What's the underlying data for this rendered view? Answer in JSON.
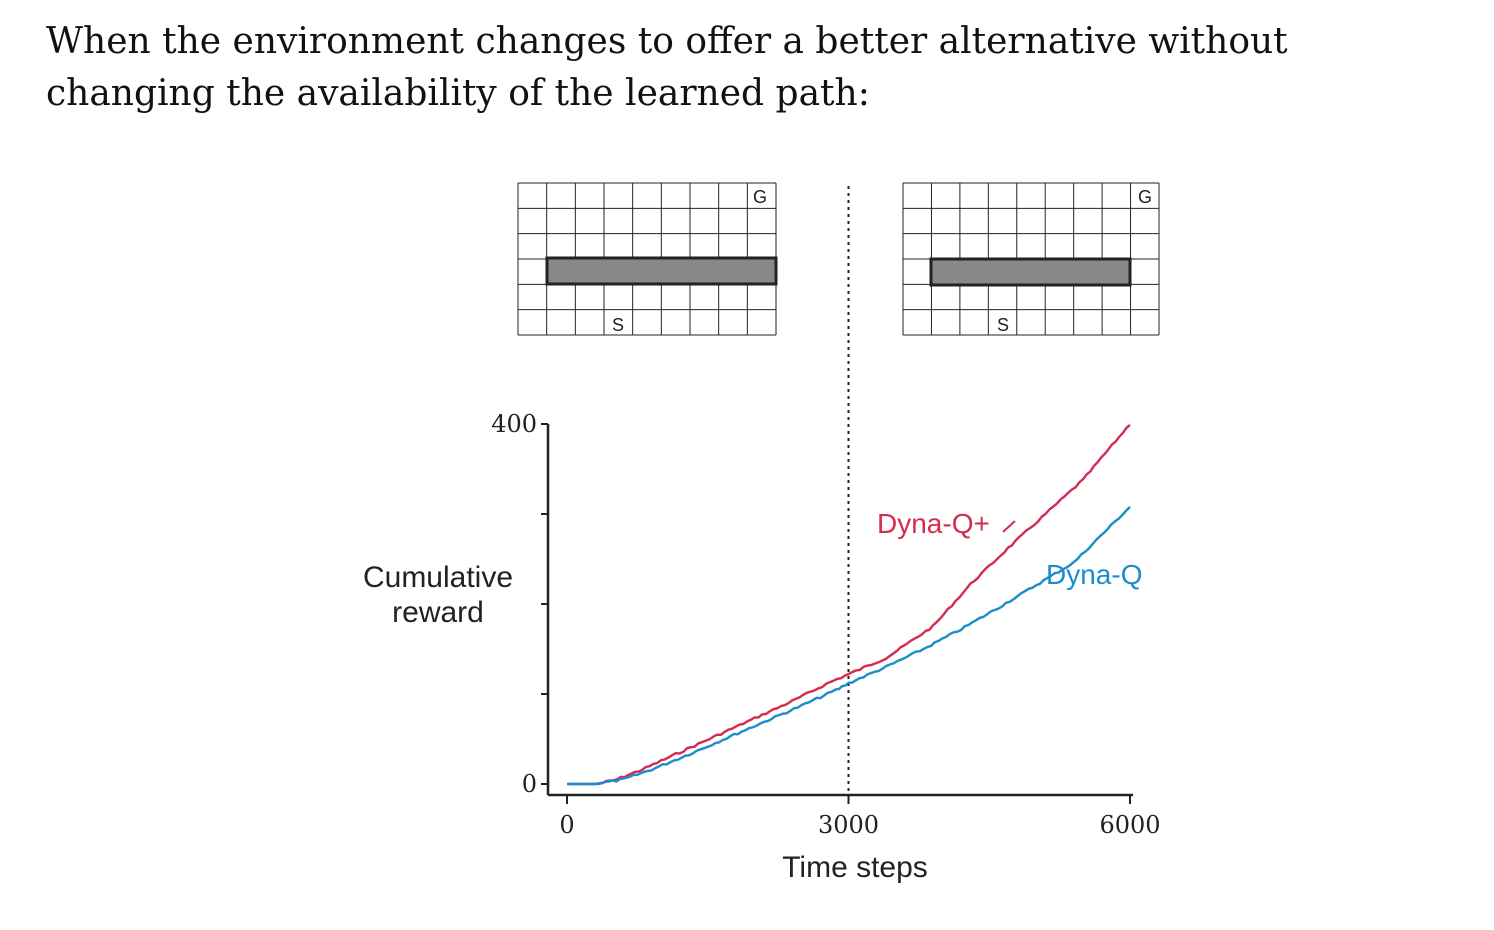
{
  "heading": {
    "line1": "When the environment changes to offer a better alternative without",
    "line2": "changing the availability of the learned path:"
  },
  "mazes": [
    {
      "start_label": "S",
      "goal_label": "G"
    },
    {
      "start_label": "S",
      "goal_label": "G"
    }
  ],
  "chart_data": {
    "type": "line",
    "xlabel": "Time steps",
    "ylabel": [
      "Cumulative",
      "reward"
    ],
    "xlim": [
      0,
      6000
    ],
    "ylim": [
      0,
      400
    ],
    "x_ticks": [
      "0",
      "3000",
      "6000"
    ],
    "y_ticks": [
      "0",
      "400"
    ],
    "y_minor_ticks": [
      100,
      200,
      300
    ],
    "change_step": 3000,
    "series": [
      {
        "name": "Dyna-Q+",
        "color": "#d32c4f",
        "points": [
          [
            0,
            0
          ],
          [
            300,
            0
          ],
          [
            500,
            4
          ],
          [
            800,
            16
          ],
          [
            1200,
            35
          ],
          [
            1600,
            54
          ],
          [
            2000,
            73
          ],
          [
            2400,
            92
          ],
          [
            2800,
            113
          ],
          [
            3000,
            122
          ],
          [
            3400,
            140
          ],
          [
            3900,
            175
          ],
          [
            4300,
            222
          ],
          [
            4700,
            262
          ],
          [
            5100,
            300
          ],
          [
            5500,
            338
          ],
          [
            6000,
            400
          ]
        ]
      },
      {
        "name": "Dyna-Q",
        "color": "#1c8ccc",
        "points": [
          [
            0,
            0
          ],
          [
            300,
            0
          ],
          [
            600,
            5
          ],
          [
            900,
            16
          ],
          [
            1300,
            33
          ],
          [
            1700,
            51
          ],
          [
            2100,
            69
          ],
          [
            2500,
            87
          ],
          [
            2900,
            106
          ],
          [
            3000,
            112
          ],
          [
            3400,
            130
          ],
          [
            3800,
            150
          ],
          [
            4200,
            172
          ],
          [
            4600,
            196
          ],
          [
            5000,
            221
          ],
          [
            5400,
            246
          ],
          [
            6000,
            308
          ]
        ]
      }
    ]
  }
}
